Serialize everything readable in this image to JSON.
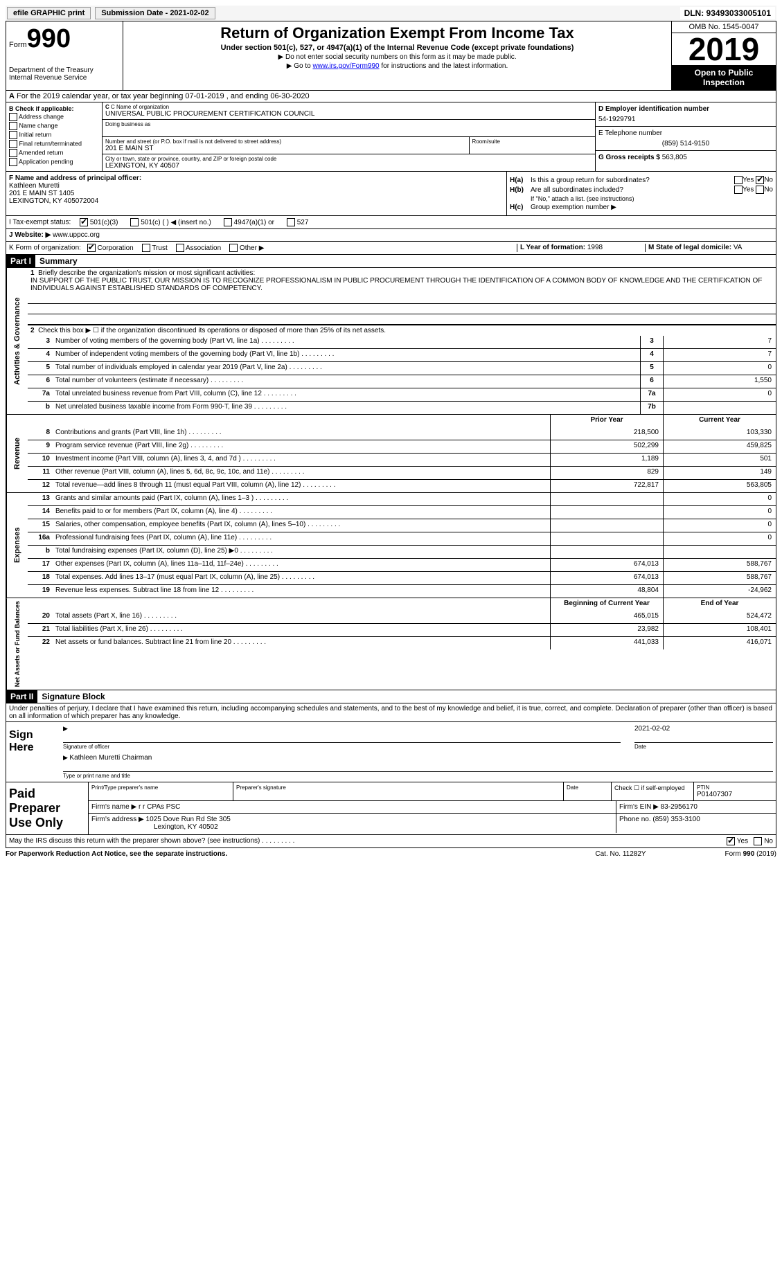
{
  "colors": {
    "black": "#000000",
    "white": "#ffffff",
    "link": "#0000ee",
    "light_gray": "#eeeeee"
  },
  "topbar": {
    "efile_label": "efile GRAPHIC print",
    "submission_label": "Submission Date - 2021-02-02",
    "dln_label": "DLN: 93493033005101"
  },
  "header": {
    "form_word": "Form",
    "form_number": "990",
    "dept": "Department of the Treasury",
    "irs": "Internal Revenue Service",
    "title": "Return of Organization Exempt From Income Tax",
    "subtitle": "Under section 501(c), 527, or 4947(a)(1) of the Internal Revenue Code (except private foundations)",
    "note1": "▶ Do not enter social security numbers on this form as it may be made public.",
    "note2_pre": "▶ Go to ",
    "note2_link": "www.irs.gov/Form990",
    "note2_post": " for instructions and the latest information.",
    "omb": "OMB No. 1545-0047",
    "year": "2019",
    "open_public": "Open to Public Inspection"
  },
  "rowA": {
    "prefix": "A",
    "text": "For the 2019 calendar year, or tax year beginning 07-01-2019   , and ending 06-30-2020"
  },
  "boxB": {
    "title": "B Check if applicable:",
    "items": [
      "Address change",
      "Name change",
      "Initial return",
      "Final return/terminated",
      "Amended return",
      "Application pending"
    ]
  },
  "boxC": {
    "name_lbl": "C Name of organization",
    "name": "UNIVERSAL PUBLIC PROCUREMENT CERTIFICATION COUNCIL",
    "dba_lbl": "Doing business as",
    "street_lbl": "Number and street (or P.O. box if mail is not delivered to street address)",
    "room_lbl": "Room/suite",
    "street": "201 E MAIN ST",
    "city_lbl": "City or town, state or province, country, and ZIP or foreign postal code",
    "city": "LEXINGTON, KY  40507"
  },
  "boxD": {
    "lbl": "D Employer identification number",
    "val": "54-1929791"
  },
  "boxE": {
    "lbl": "E Telephone number",
    "val": "(859) 514-9150"
  },
  "boxG": {
    "lbl": "G Gross receipts $",
    "val": "563,805"
  },
  "boxF": {
    "lbl": "F  Name and address of principal officer:",
    "name": "Kathleen Muretti",
    "addr1": "201 E MAIN ST 1405",
    "addr2": "LEXINGTON, KY  405072004"
  },
  "boxH": {
    "a_lbl": "H(a)",
    "a_txt": "Is this a group return for subordinates?",
    "b_lbl": "H(b)",
    "b_txt": "Are all subordinates included?",
    "b_note": "If \"No,\" attach a list. (see instructions)",
    "c_lbl": "H(c)",
    "c_txt": "Group exemption number ▶",
    "yes": "Yes",
    "no": "No"
  },
  "rowI": {
    "lbl": "I   Tax-exempt status:",
    "opts": [
      "501(c)(3)",
      "501(c) (  ) ◀ (insert no.)",
      "4947(a)(1) or",
      "527"
    ],
    "checked": 0
  },
  "rowJ": {
    "lbl": "J   Website: ▶",
    "val": "www.uppcc.org"
  },
  "rowK": {
    "lbl": "K Form of organization:",
    "opts": [
      "Corporation",
      "Trust",
      "Association",
      "Other ▶"
    ],
    "checked": 0
  },
  "rowL": {
    "lbl": "L Year of formation:",
    "val": "1998"
  },
  "rowM": {
    "lbl": "M State of legal domicile:",
    "val": "VA"
  },
  "part1": {
    "hdr": "Part I",
    "title": "Summary",
    "side_ag": "Activities & Governance",
    "side_rev": "Revenue",
    "side_exp": "Expenses",
    "side_net": "Net Assets or Fund Balances",
    "q1_lbl": "1",
    "q1_txt": "Briefly describe the organization's mission or most significant activities:",
    "q1_mission": "IN SUPPORT OF THE PUBLIC TRUST, OUR MISSION IS TO RECOGNIZE PROFESSIONALISM IN PUBLIC PROCUREMENT THROUGH THE IDENTIFICATION OF A COMMON BODY OF KNOWLEDGE AND THE CERTIFICATION OF INDIVIDUALS AGAINST ESTABLISHED STANDARDS OF COMPETENCY.",
    "q2": "Check this box ▶ ☐  if the organization discontinued its operations or disposed of more than 25% of its net assets.",
    "rows_ag": [
      {
        "n": "3",
        "d": "Number of voting members of the governing body (Part VI, line 1a)",
        "box": "3",
        "v": "7"
      },
      {
        "n": "4",
        "d": "Number of independent voting members of the governing body (Part VI, line 1b)",
        "box": "4",
        "v": "7"
      },
      {
        "n": "5",
        "d": "Total number of individuals employed in calendar year 2019 (Part V, line 2a)",
        "box": "5",
        "v": "0"
      },
      {
        "n": "6",
        "d": "Total number of volunteers (estimate if necessary)",
        "box": "6",
        "v": "1,550"
      },
      {
        "n": "7a",
        "d": "Total unrelated business revenue from Part VIII, column (C), line 12",
        "box": "7a",
        "v": "0"
      },
      {
        "n": "b",
        "d": "Net unrelated business taxable income from Form 990-T, line 39",
        "box": "7b",
        "v": ""
      }
    ],
    "col_prior": "Prior Year",
    "col_curr": "Current Year",
    "rows_rev": [
      {
        "n": "8",
        "d": "Contributions and grants (Part VIII, line 1h)",
        "p": "218,500",
        "c": "103,330"
      },
      {
        "n": "9",
        "d": "Program service revenue (Part VIII, line 2g)",
        "p": "502,299",
        "c": "459,825"
      },
      {
        "n": "10",
        "d": "Investment income (Part VIII, column (A), lines 3, 4, and 7d )",
        "p": "1,189",
        "c": "501"
      },
      {
        "n": "11",
        "d": "Other revenue (Part VIII, column (A), lines 5, 6d, 8c, 9c, 10c, and 11e)",
        "p": "829",
        "c": "149"
      },
      {
        "n": "12",
        "d": "Total revenue—add lines 8 through 11 (must equal Part VIII, column (A), line 12)",
        "p": "722,817",
        "c": "563,805"
      }
    ],
    "rows_exp": [
      {
        "n": "13",
        "d": "Grants and similar amounts paid (Part IX, column (A), lines 1–3 )",
        "p": "",
        "c": "0"
      },
      {
        "n": "14",
        "d": "Benefits paid to or for members (Part IX, column (A), line 4)",
        "p": "",
        "c": "0"
      },
      {
        "n": "15",
        "d": "Salaries, other compensation, employee benefits (Part IX, column (A), lines 5–10)",
        "p": "",
        "c": "0"
      },
      {
        "n": "16a",
        "d": "Professional fundraising fees (Part IX, column (A), line 11e)",
        "p": "",
        "c": "0"
      },
      {
        "n": "b",
        "d": "Total fundraising expenses (Part IX, column (D), line 25) ▶0",
        "p": "",
        "c": ""
      },
      {
        "n": "17",
        "d": "Other expenses (Part IX, column (A), lines 11a–11d, 11f–24e)",
        "p": "674,013",
        "c": "588,767"
      },
      {
        "n": "18",
        "d": "Total expenses. Add lines 13–17 (must equal Part IX, column (A), line 25)",
        "p": "674,013",
        "c": "588,767"
      },
      {
        "n": "19",
        "d": "Revenue less expenses. Subtract line 18 from line 12",
        "p": "48,804",
        "c": "-24,962"
      }
    ],
    "col_beg": "Beginning of Current Year",
    "col_end": "End of Year",
    "rows_net": [
      {
        "n": "20",
        "d": "Total assets (Part X, line 16)",
        "p": "465,015",
        "c": "524,472"
      },
      {
        "n": "21",
        "d": "Total liabilities (Part X, line 26)",
        "p": "23,982",
        "c": "108,401"
      },
      {
        "n": "22",
        "d": "Net assets or fund balances. Subtract line 21 from line 20",
        "p": "441,033",
        "c": "416,071"
      }
    ]
  },
  "part2": {
    "hdr": "Part II",
    "title": "Signature Block",
    "decl": "Under penalties of perjury, I declare that I have examined this return, including accompanying schedules and statements, and to the best of my knowledge and belief, it is true, correct, and complete. Declaration of preparer (other than officer) is based on all information of which preparer has any knowledge."
  },
  "sign": {
    "here": "Sign Here",
    "sig_lbl": "Signature of officer",
    "date_lbl": "Date",
    "date_val": "2021-02-02",
    "name_val": "Kathleen Muretti  Chairman",
    "name_lbl": "Type or print name and title"
  },
  "paid": {
    "title": "Paid Preparer Use Only",
    "r1": {
      "c1_lbl": "Print/Type preparer's name",
      "c2_lbl": "Preparer's signature",
      "c3_lbl": "Date",
      "c4_lbl": "Check ☐ if self-employed",
      "c5_lbl": "PTIN",
      "c5_val": "P01407307"
    },
    "r2": {
      "lbl": "Firm's name     ▶",
      "val": "r r CPAs PSC",
      "ein_lbl": "Firm's EIN ▶",
      "ein_val": "83-2956170"
    },
    "r3": {
      "lbl": "Firm's address ▶",
      "val1": "1025 Dove Run Rd Ste 305",
      "val2": "Lexington, KY  40502",
      "ph_lbl": "Phone no.",
      "ph_val": "(859) 353-3100"
    }
  },
  "footer": {
    "discuss": "May the IRS discuss this return with the preparer shown above? (see instructions)",
    "yes": "Yes",
    "no": "No",
    "pra": "For Paperwork Reduction Act Notice, see the separate instructions.",
    "cat": "Cat. No. 11282Y",
    "form": "Form 990 (2019)"
  }
}
